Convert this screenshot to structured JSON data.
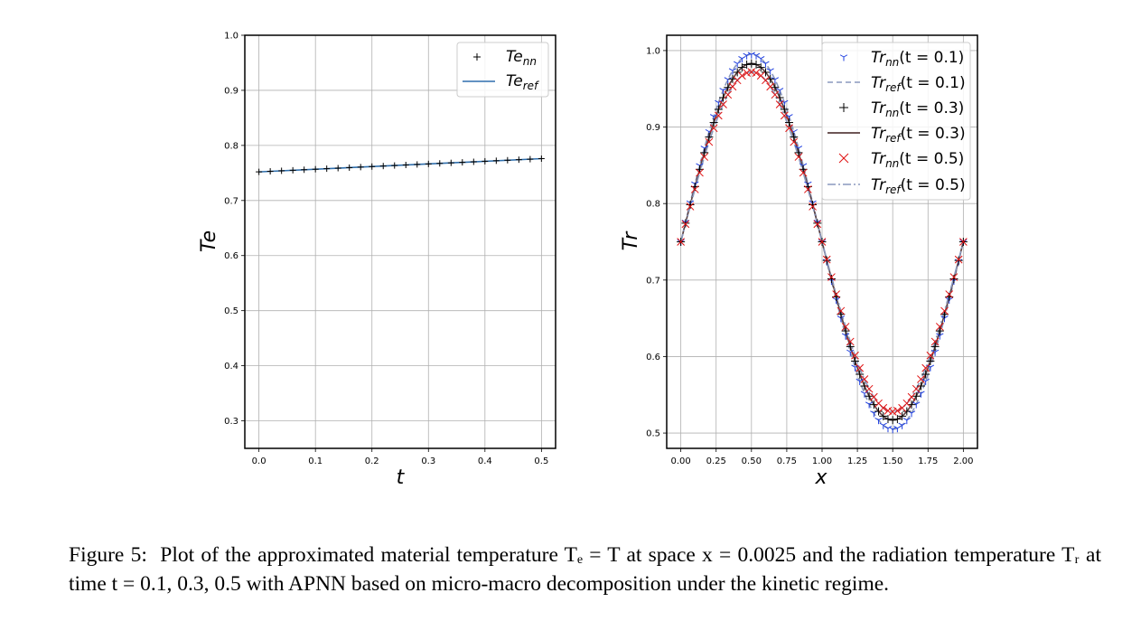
{
  "figure_label": "Figure 5:",
  "caption_text": "Plot of the approximated material temperature Tₑ = T at space x = 0.0025 and the radiation temperature Tᵣ at time t = 0.1, 0.3, 0.5 with APNN based on micro-macro decomposition under the kinetic regime.",
  "colors": {
    "blue_line": "#2f6fad",
    "blue_marker": "#1f3fe0",
    "red_marker": "#e01010",
    "dark_line": "#5a3f3f",
    "dash_line": "#8a98bd",
    "grid": "#b0b0b0"
  },
  "chart_data": [
    {
      "type": "line",
      "xlabel": "t",
      "ylabel": "Te",
      "xlim": [
        -0.025,
        0.525
      ],
      "ylim": [
        0.25,
        1.0
      ],
      "xticks": [
        "0.0",
        "0.1",
        "0.2",
        "0.3",
        "0.4",
        "0.5"
      ],
      "yticks": [
        "0.3",
        "0.4",
        "0.5",
        "0.6",
        "0.7",
        "0.8",
        "0.9",
        "1.0"
      ],
      "grid": true,
      "legend": "top-right",
      "series": [
        {
          "name": "Te_nn",
          "legend_base": "Te",
          "legend_sub": "nn",
          "style": "plus-markers",
          "x_start": 0.0,
          "x_end": 0.5,
          "n_points": 26,
          "y_start": 0.752,
          "y_end": 0.776
        },
        {
          "name": "Te_ref",
          "legend_base": "Te",
          "legend_sub": "ref",
          "style": "solid-line",
          "x_start": 0.0,
          "x_end": 0.5,
          "y_start": 0.752,
          "y_end": 0.776
        }
      ]
    },
    {
      "type": "line",
      "xlabel": "x",
      "ylabel": "Tr",
      "xlim": [
        -0.1,
        2.1
      ],
      "ylim": [
        0.48,
        1.02
      ],
      "xticks": [
        "0.00",
        "0.25",
        "0.50",
        "0.75",
        "1.00",
        "1.25",
        "1.50",
        "1.75",
        "2.00"
      ],
      "yticks": [
        "0.5",
        "0.6",
        "0.7",
        "0.8",
        "0.9",
        "1.0"
      ],
      "grid": true,
      "legend": "top-right",
      "series": [
        {
          "name": "Tr_nn(t = 0.1)",
          "legend_base": "Tr",
          "legend_sub": "nn",
          "legend_suffix": "(t = 0.1)",
          "style": "tri-down-markers",
          "offset": 0.75,
          "amplitude": 0.245
        },
        {
          "name": "Tr_ref(t = 0.1)",
          "legend_base": "Tr",
          "legend_sub": "ref",
          "legend_suffix": "(t = 0.1)",
          "style": "dashed-line",
          "offset": 0.75,
          "amplitude": 0.245
        },
        {
          "name": "Tr_nn(t = 0.3)",
          "legend_base": "Tr",
          "legend_sub": "nn",
          "legend_suffix": "(t = 0.3)",
          "style": "plus-markers",
          "offset": 0.75,
          "amplitude": 0.233
        },
        {
          "name": "Tr_ref(t = 0.3)",
          "legend_base": "Tr",
          "legend_sub": "ref",
          "legend_suffix": "(t = 0.3)",
          "style": "solid-line",
          "offset": 0.75,
          "amplitude": 0.233
        },
        {
          "name": "Tr_nn(t = 0.5)",
          "legend_base": "Tr",
          "legend_sub": "nn",
          "legend_suffix": "(t = 0.5)",
          "style": "x-markers",
          "offset": 0.75,
          "amplitude": 0.222
        },
        {
          "name": "Tr_ref(t = 0.5)",
          "legend_base": "Tr",
          "legend_sub": "ref",
          "legend_suffix": "(t = 0.5)",
          "style": "dashdot-line",
          "offset": 0.75,
          "amplitude": 0.222
        }
      ],
      "x_range": [
        0.0,
        2.0
      ],
      "n_points": 61
    }
  ]
}
